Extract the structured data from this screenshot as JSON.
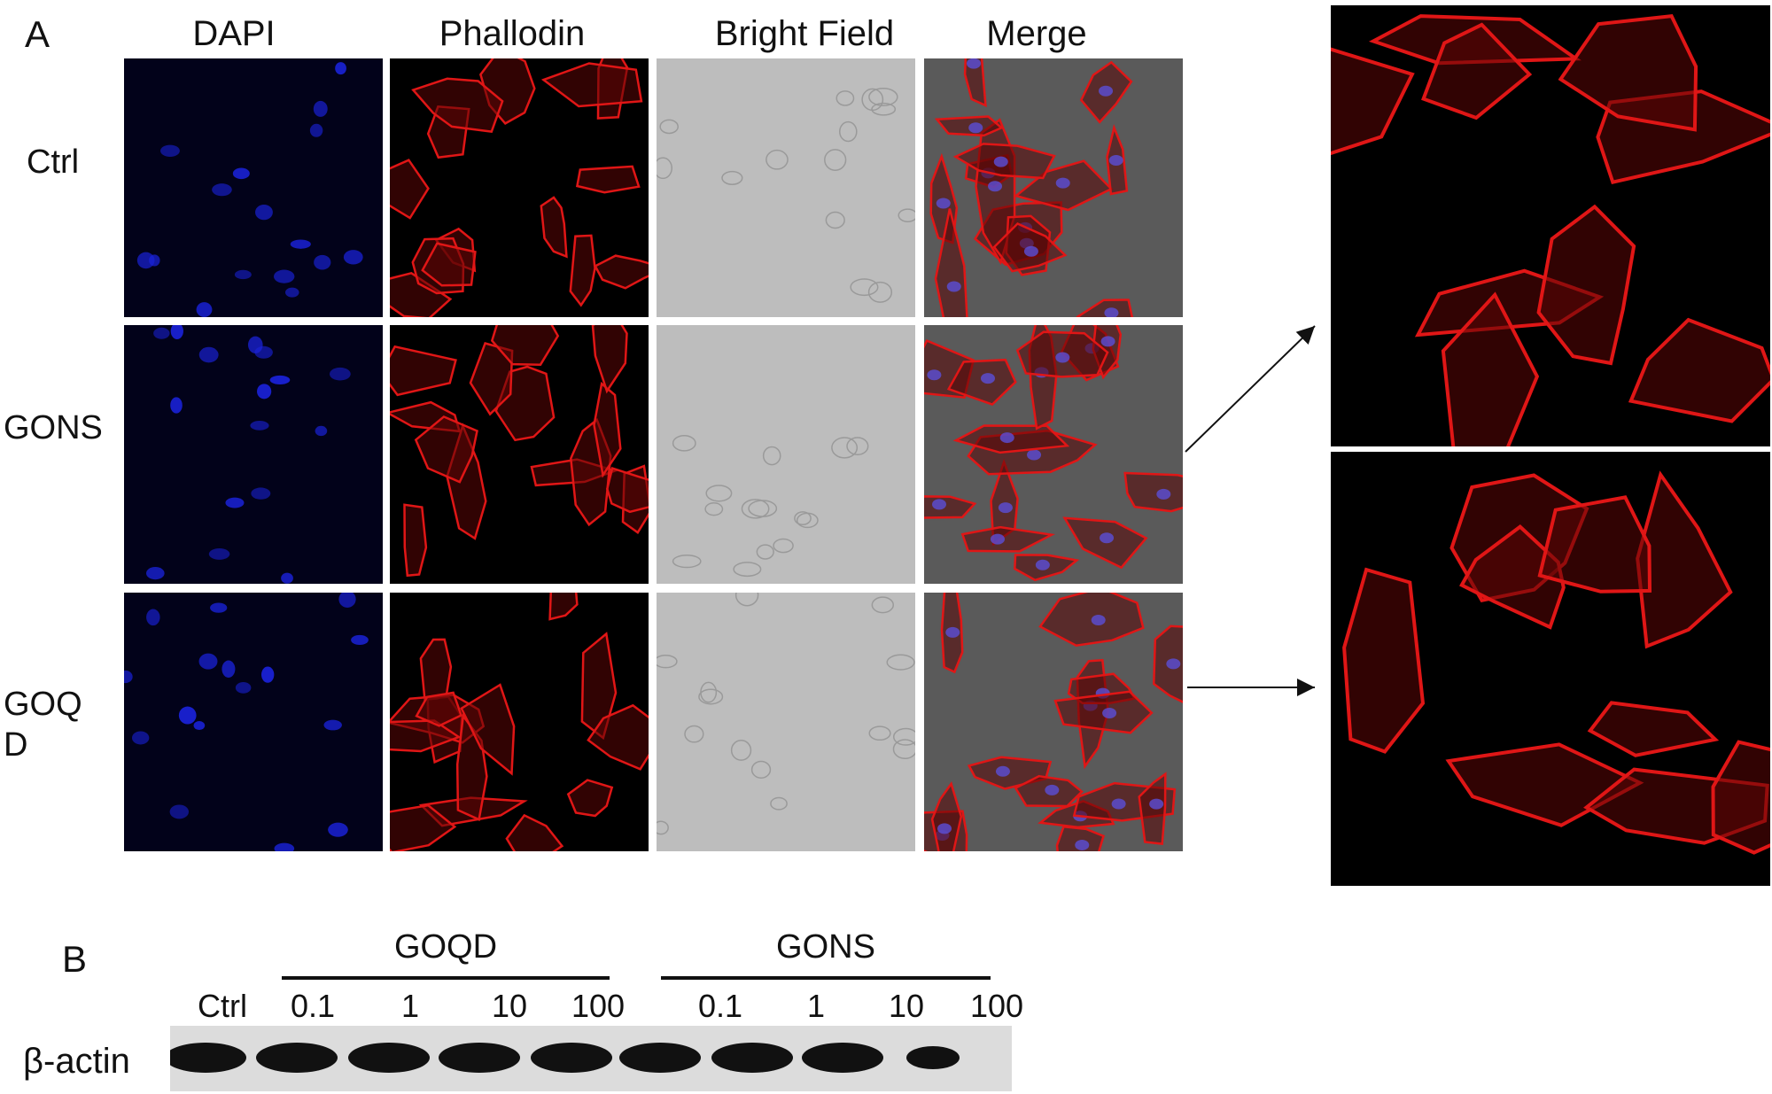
{
  "panel_a": {
    "letter": "A",
    "columns": [
      "DAPI",
      "Phallodin",
      "Bright Field",
      "Merge"
    ],
    "rows": [
      "Ctrl",
      "GONS",
      "GOQ\nD"
    ]
  },
  "panel_b": {
    "letter": "B",
    "groups": [
      "GOQD",
      "GONS"
    ],
    "lanes": [
      "Ctrl",
      "0.1",
      "1",
      "10",
      "100",
      "0.1",
      "1",
      "10",
      "100"
    ],
    "row_label": "β-actin"
  },
  "colors": {
    "dapi": "#1a22d8",
    "phalloidin": "#e01616",
    "bright_field": "#bdbdbd",
    "merge_bg": "#5a5a5a",
    "blot_band": "#111111"
  }
}
